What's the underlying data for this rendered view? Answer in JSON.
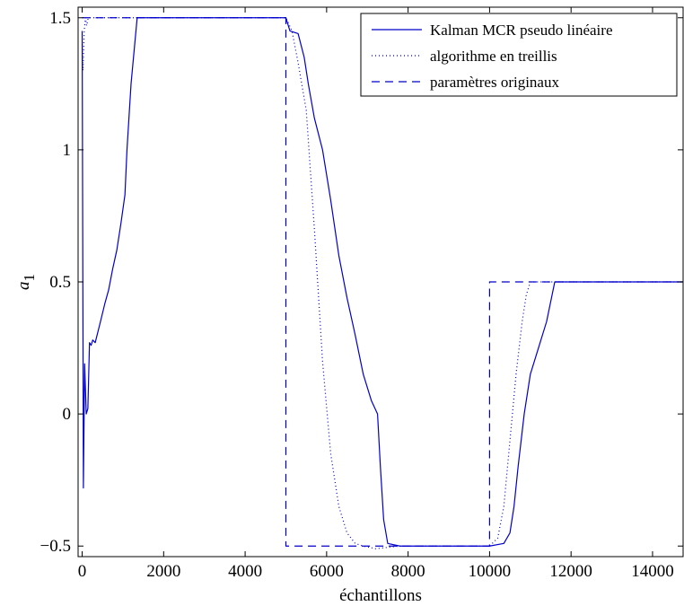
{
  "chart_data": {
    "type": "line",
    "title": "",
    "xlabel": "échantillons",
    "ylabel": "a",
    "ylabel_subscript": "1",
    "xlim": [
      -100,
      14750
    ],
    "ylim": [
      -0.54,
      1.54
    ],
    "xticks": [
      0,
      2000,
      4000,
      6000,
      8000,
      10000,
      12000,
      14000
    ],
    "yticks": [
      -0.5,
      0,
      0.5,
      1,
      1.5
    ],
    "ytick_labels": [
      "−0.5",
      "0",
      "0.5",
      "1",
      "1.5"
    ],
    "grid": false,
    "legend_position": "top-right",
    "line_color": "#0000cc",
    "series": [
      {
        "name": "Kalman MCR pseudo linéaire",
        "style": "solid",
        "x": [
          0,
          30,
          60,
          100,
          140,
          180,
          220,
          260,
          320,
          450,
          560,
          650,
          750,
          850,
          950,
          1050,
          1100,
          1200,
          1350,
          1500,
          2000,
          3000,
          4000,
          5000,
          5100,
          5300,
          5450,
          5550,
          5700,
          5900,
          6100,
          6300,
          6500,
          6700,
          6900,
          7100,
          7250,
          7320,
          7400,
          7500,
          7800,
          8500,
          9500,
          10000,
          10350,
          10500,
          10600,
          10700,
          10850,
          11000,
          11200,
          11400,
          11600,
          12000,
          13000,
          14000,
          14750
        ],
        "y": [
          1.45,
          -0.28,
          0.19,
          0.0,
          0.02,
          0.27,
          0.26,
          0.28,
          0.27,
          0.35,
          0.42,
          0.47,
          0.55,
          0.62,
          0.72,
          0.83,
          1.0,
          1.25,
          1.5,
          1.5,
          1.5,
          1.5,
          1.5,
          1.5,
          1.45,
          1.44,
          1.35,
          1.25,
          1.12,
          1.0,
          0.81,
          0.6,
          0.44,
          0.3,
          0.15,
          0.05,
          0.0,
          -0.2,
          -0.4,
          -0.49,
          -0.5,
          -0.5,
          -0.5,
          -0.5,
          -0.49,
          -0.45,
          -0.35,
          -0.2,
          0.0,
          0.15,
          0.25,
          0.35,
          0.5,
          0.5,
          0.5,
          0.5,
          0.5
        ]
      },
      {
        "name": "algorithme en treillis",
        "style": "dotted",
        "x": [
          0,
          20,
          50,
          80,
          110,
          150,
          200,
          500,
          1000,
          2000,
          3000,
          4000,
          5000,
          5150,
          5300,
          5500,
          5700,
          5900,
          6100,
          6300,
          6500,
          6700,
          6900,
          7200,
          7800,
          8500,
          9500,
          10000,
          10200,
          10350,
          10500,
          10650,
          10800,
          10900,
          11000,
          11500,
          12000,
          13000,
          14000,
          14750
        ],
        "y": [
          1.4,
          1.3,
          1.45,
          1.5,
          1.47,
          1.5,
          1.5,
          1.5,
          1.5,
          1.5,
          1.5,
          1.5,
          1.5,
          1.45,
          1.33,
          1.15,
          0.7,
          0.2,
          -0.15,
          -0.35,
          -0.45,
          -0.49,
          -0.5,
          -0.51,
          -0.5,
          -0.5,
          -0.5,
          -0.5,
          -0.47,
          -0.35,
          -0.1,
          0.15,
          0.35,
          0.45,
          0.5,
          0.5,
          0.5,
          0.5,
          0.5,
          0.5
        ]
      },
      {
        "name": "paramètres originaux",
        "style": "dashed",
        "x": [
          0,
          5000,
          5000,
          10000,
          10000,
          14750
        ],
        "y": [
          1.5,
          1.5,
          -0.5,
          -0.5,
          0.5,
          0.5
        ]
      }
    ]
  }
}
